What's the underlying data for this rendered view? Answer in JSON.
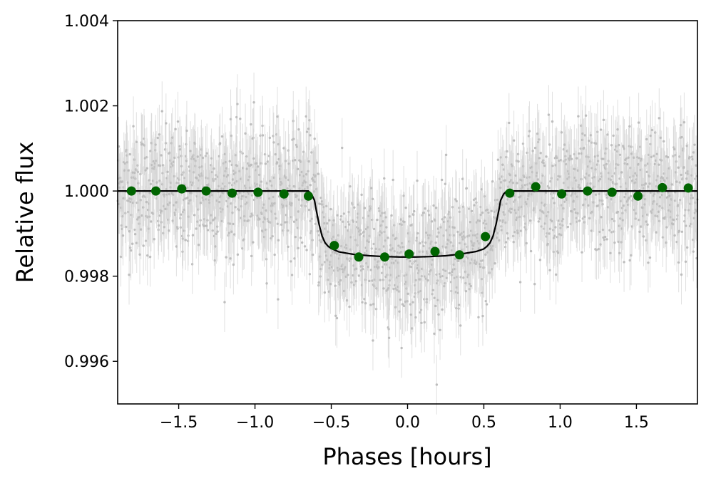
{
  "chart_data": {
    "type": "scatter",
    "xlabel": "Phases [hours]",
    "ylabel": "Relative flux",
    "xlim": [
      -1.9,
      1.9
    ],
    "ylim": [
      0.995,
      1.004
    ],
    "x_ticks": [
      -1.5,
      -1.0,
      -0.5,
      0.0,
      0.5,
      1.0,
      1.5
    ],
    "x_tick_labels": [
      "−1.5",
      "−1.0",
      "−0.5",
      "0.0",
      "0.5",
      "1.0",
      "1.5"
    ],
    "y_ticks": [
      0.996,
      0.998,
      1.0,
      1.002,
      1.004
    ],
    "y_tick_labels": [
      "0.996",
      "0.998",
      "1.000",
      "1.002",
      "1.004"
    ],
    "grid": false,
    "legend": "none",
    "colors": {
      "raw_points": "#bdbdbd",
      "error_bars": "#d3d3d3",
      "binned_points": "#006400",
      "model_line": "#000000"
    },
    "series": [
      {
        "kind": "model-line",
        "x": [
          -1.9,
          -0.65,
          -0.63,
          -0.61,
          -0.6,
          -0.58,
          -0.56,
          -0.54,
          -0.52,
          -0.5,
          -0.45,
          -0.35,
          -0.25,
          -0.15,
          -0.05,
          0.05,
          0.15,
          0.25,
          0.35,
          0.45,
          0.5,
          0.52,
          0.54,
          0.56,
          0.58,
          0.6,
          0.61,
          0.63,
          0.65,
          1.9
        ],
        "y": [
          1.0,
          1.0,
          0.99993,
          0.99978,
          0.99958,
          0.99922,
          0.99894,
          0.99878,
          0.9987,
          0.99865,
          0.99857,
          0.99851,
          0.99848,
          0.99846,
          0.99845,
          0.99845,
          0.99846,
          0.99848,
          0.99852,
          0.99858,
          0.99864,
          0.9987,
          0.99878,
          0.99894,
          0.99922,
          0.99958,
          0.99978,
          0.99993,
          1.0,
          1.0
        ]
      },
      {
        "kind": "binned-points",
        "x": [
          -1.81,
          -1.65,
          -1.48,
          -1.32,
          -1.15,
          -0.98,
          -0.81,
          -0.65,
          -0.48,
          -0.32,
          -0.15,
          0.01,
          0.18,
          0.34,
          0.51,
          0.67,
          0.84,
          1.01,
          1.18,
          1.34,
          1.51,
          1.67,
          1.84
        ],
        "y": [
          1.0,
          1.0,
          1.00005,
          1.0,
          0.99995,
          0.99997,
          0.99993,
          0.99988,
          0.99872,
          0.99845,
          0.99845,
          0.99852,
          0.99858,
          0.9985,
          0.99893,
          0.99995,
          1.0001,
          0.99993,
          1.0,
          0.99997,
          0.99988,
          1.00008,
          1.00007
        ]
      }
    ]
  }
}
